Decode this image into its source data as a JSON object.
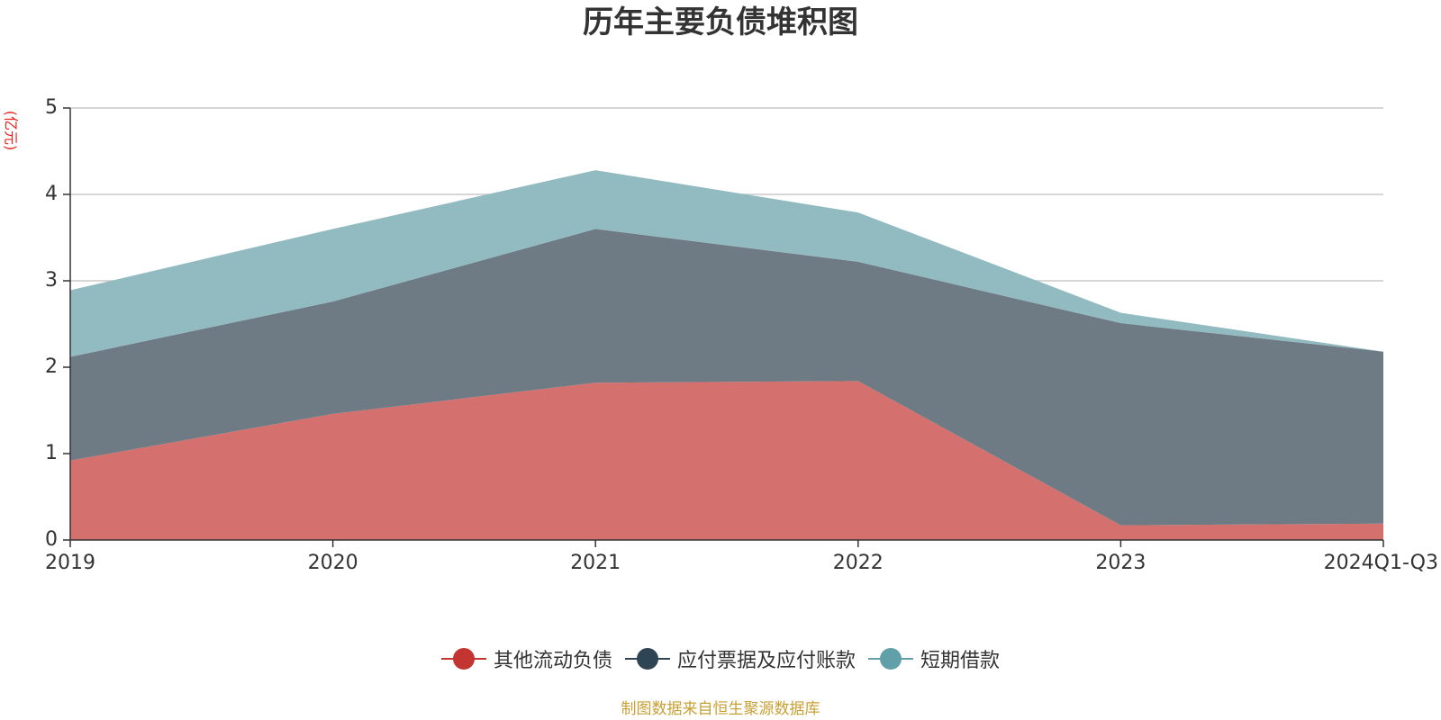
{
  "chart_data": {
    "type": "area",
    "stacked": true,
    "title": "历年主要负债堆积图",
    "y_unit_label": "(亿元)",
    "categories": [
      "2019",
      "2020",
      "2021",
      "2022",
      "2023",
      "2024Q1-Q3"
    ],
    "ylim": [
      0,
      5
    ],
    "y_ticks": [
      0,
      1,
      2,
      3,
      4,
      5
    ],
    "grid": true,
    "legend_position": "bottom-center",
    "series": [
      {
        "name": "其他流动负债",
        "color": "#c23531",
        "fill": "#d4706d",
        "values": [
          0.92,
          1.46,
          1.82,
          1.84,
          0.17,
          0.19
        ]
      },
      {
        "name": "应付票据及应付账款",
        "color": "#2f4554",
        "fill": "#6e7b85",
        "values": [
          1.2,
          1.3,
          1.78,
          1.38,
          2.34,
          1.99
        ]
      },
      {
        "name": "短期借款",
        "color": "#61a0a8",
        "fill": "#91bbc1",
        "values": [
          0.77,
          0.84,
          0.68,
          0.57,
          0.12,
          0.0
        ]
      }
    ]
  },
  "source_note": "制图数据来自恒生聚源数据库"
}
